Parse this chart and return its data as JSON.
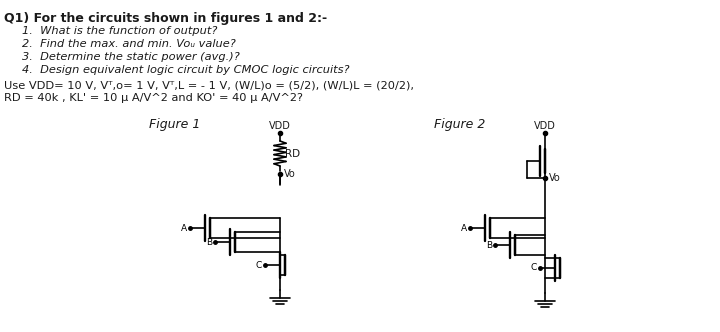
{
  "bg_color": "#ffffff",
  "text_color": "#1a1a1a",
  "title_line": "Q1) For the circuits shown in figures 1 and 2:-",
  "questions": [
    "1.  What is the function of output?",
    "2.  Find the max. and min. Voᵤ value?",
    "3.  Determine the static power (avg.)?",
    "4.  Design equivalent logic circuit by CMOC logic circuits?"
  ],
  "params_line1": "Use VDD= 10 V, Vᵀ,o= 1 V, Vᵀ,L = - 1 V, (W/L)o = (5/2), (W/L)L = (20/2),",
  "params_line2": "RD = 40k , KL' = 10 μ A/V^2 and KO' = 40 μ A/V^2?",
  "fig1_label": "Figure 1",
  "fig2_label": "Figure 2",
  "vdd_label": "VDD",
  "rd_label": "RD",
  "vo_label": "Vo",
  "input_labels": [
    "A",
    "B",
    "C"
  ],
  "line_color": "#000000",
  "line_width": 1.2
}
